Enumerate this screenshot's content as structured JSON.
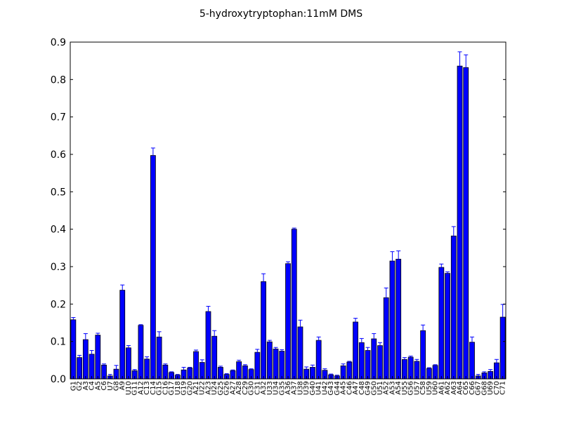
{
  "chart_data": {
    "type": "bar",
    "title": "5-hydroxytryptophan:11mM  DMS",
    "xlabel": "",
    "ylabel": "",
    "ylim": [
      0,
      0.9
    ],
    "yticks": [
      "0.0",
      "0.1",
      "0.2",
      "0.3",
      "0.4",
      "0.5",
      "0.6",
      "0.7",
      "0.8",
      "0.9"
    ],
    "grid": false,
    "bar_color": "#0000ff",
    "error_color": "#0000ff",
    "categories": [
      "G1",
      "G2",
      "A3",
      "C4",
      "A5",
      "C6",
      "U7",
      "G8",
      "A9",
      "U10",
      "G11",
      "A12",
      "C13",
      "C14",
      "G15",
      "C16",
      "G17",
      "U18",
      "G19",
      "G20",
      "A21",
      "U22",
      "A23",
      "U24",
      "G25",
      "G26",
      "A27",
      "A28",
      "C29",
      "G30",
      "C31",
      "A32",
      "U33",
      "U34",
      "G35",
      "A36",
      "A37",
      "U38",
      "U39",
      "G40",
      "U41",
      "U42",
      "G43",
      "G44",
      "A45",
      "C46",
      "A47",
      "C48",
      "G49",
      "G50",
      "U51",
      "A52",
      "A53",
      "A54",
      "U55",
      "G56",
      "U57",
      "C58",
      "U59",
      "U60",
      "A61",
      "A62",
      "A63",
      "A64",
      "C65",
      "C66",
      "G67",
      "G68",
      "U69",
      "C70",
      "C71"
    ],
    "values": [
      0.158,
      0.057,
      0.105,
      0.066,
      0.117,
      0.037,
      0.008,
      0.026,
      0.237,
      0.083,
      0.022,
      0.143,
      0.053,
      0.597,
      0.112,
      0.037,
      0.017,
      0.01,
      0.024,
      0.029,
      0.073,
      0.044,
      0.18,
      0.114,
      0.031,
      0.012,
      0.022,
      0.046,
      0.035,
      0.025,
      0.071,
      0.26,
      0.099,
      0.08,
      0.074,
      0.308,
      0.4,
      0.139,
      0.026,
      0.031,
      0.103,
      0.023,
      0.011,
      0.008,
      0.035,
      0.045,
      0.152,
      0.097,
      0.076,
      0.107,
      0.089,
      0.217,
      0.315,
      0.32,
      0.052,
      0.058,
      0.047,
      0.129,
      0.028,
      0.036,
      0.298,
      0.282,
      0.382,
      0.836,
      0.832,
      0.098,
      0.008,
      0.016,
      0.02,
      0.043,
      0.165
    ],
    "errors": [
      0.006,
      0.006,
      0.016,
      0.01,
      0.005,
      0.003,
      0.004,
      0.01,
      0.014,
      0.006,
      0.003,
      0.002,
      0.006,
      0.02,
      0.014,
      0.003,
      0.002,
      0.002,
      0.007,
      0.002,
      0.004,
      0.007,
      0.014,
      0.015,
      0.003,
      0.002,
      0.002,
      0.004,
      0.003,
      0.002,
      0.008,
      0.021,
      0.004,
      0.004,
      0.004,
      0.005,
      0.003,
      0.018,
      0.006,
      0.006,
      0.009,
      0.004,
      0.002,
      0.002,
      0.005,
      0.002,
      0.01,
      0.011,
      0.008,
      0.014,
      0.008,
      0.026,
      0.025,
      0.022,
      0.005,
      0.003,
      0.005,
      0.015,
      0.002,
      0.002,
      0.009,
      0.004,
      0.025,
      0.038,
      0.034,
      0.014,
      0.004,
      0.003,
      0.005,
      0.009,
      0.034
    ]
  }
}
